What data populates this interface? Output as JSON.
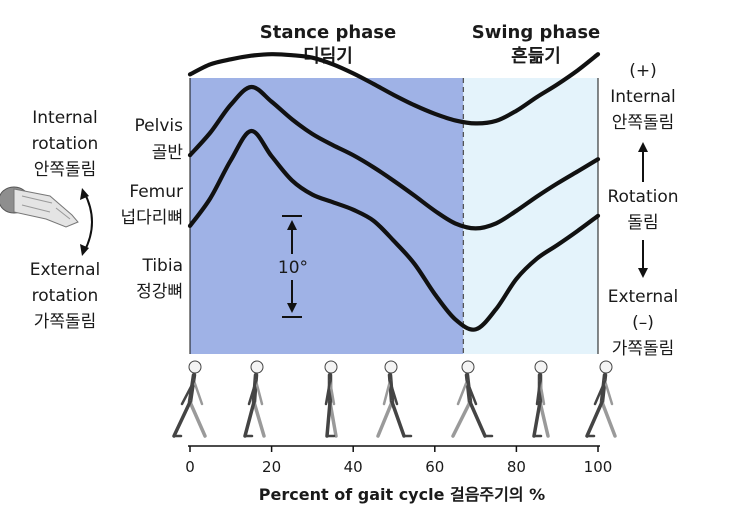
{
  "chart_data": {
    "type": "line",
    "xlabel": "Percent of gait cycle 걸음주기의 %",
    "xlim": [
      0,
      100
    ],
    "xticks": [
      0,
      20,
      40,
      60,
      80,
      100
    ],
    "phases": {
      "stance": {
        "title": "Stance phase",
        "title_ko": "디딤기",
        "range": [
          0,
          67
        ],
        "color": "#9fb2e6"
      },
      "swing": {
        "title": "Swing phase",
        "title_ko": "흔듦기",
        "range": [
          67,
          100
        ],
        "color": "#e4f3fb"
      }
    },
    "scale_label": "10°",
    "left_axis": {
      "top": [
        "Internal",
        "rotation",
        "안쪽돌림"
      ],
      "bottom": [
        "External",
        "rotation",
        "가쪽돌림"
      ]
    },
    "right_axis": {
      "top": [
        "(+)",
        "Internal",
        "안쪽돌림"
      ],
      "middle": [
        "Rotation",
        "돌림"
      ],
      "bottom": [
        "External",
        "(–)",
        "가쪽돌림"
      ]
    },
    "series": [
      {
        "name": "Pelvis",
        "name_ko": "골반",
        "x": [
          0,
          5,
          10,
          15,
          20,
          25,
          30,
          35,
          40,
          45,
          50,
          55,
          60,
          65,
          70,
          75,
          80,
          85,
          90,
          95,
          100
        ],
        "y": [
          12,
          14,
          15,
          15.7,
          16,
          15.8,
          15.3,
          14,
          12.2,
          10.1,
          7.9,
          5.9,
          4.2,
          2.9,
          2.3,
          2.8,
          4.8,
          7.5,
          10,
          12.8,
          16
        ]
      },
      {
        "name": "Femur",
        "name_ko": "넙다리뼈",
        "x": [
          0,
          5,
          10,
          15,
          20,
          25,
          30,
          35,
          40,
          45,
          50,
          55,
          60,
          65,
          70,
          75,
          80,
          85,
          90,
          95,
          100
        ],
        "y": [
          -4,
          0.5,
          6,
          9.5,
          6.6,
          3.1,
          0.2,
          -2,
          -4,
          -6.4,
          -9.1,
          -12,
          -15,
          -17.5,
          -18.5,
          -17.5,
          -15,
          -12.2,
          -9.6,
          -7.2,
          -4.8
        ]
      },
      {
        "name": "Tibia",
        "name_ko": "정강뼈",
        "x": [
          0,
          5,
          10,
          15,
          20,
          25,
          30,
          35,
          40,
          45,
          50,
          55,
          60,
          65,
          70,
          75,
          80,
          85,
          90,
          95,
          100
        ],
        "y": [
          -18,
          -12.5,
          -5,
          0.8,
          -4.2,
          -9,
          -11.8,
          -13.3,
          -14.8,
          -17,
          -21,
          -25.5,
          -31.5,
          -36.5,
          -38.5,
          -34.5,
          -28.5,
          -24.5,
          -21.8,
          -19,
          -16
        ]
      }
    ]
  },
  "figures": {
    "walkers": [
      "walking-figure-heel-strike",
      "walking-figure-foot-flat",
      "walking-figure-midstance",
      "walking-figure-heel-off",
      "walking-figure-toe-off",
      "walking-figure-midswing",
      "walking-figure-terminal-swing"
    ],
    "rotation_diagram": "leg-rotation-icon"
  },
  "colors": {
    "line": "#111111",
    "axis": "#111111",
    "boundary": "#555555"
  }
}
